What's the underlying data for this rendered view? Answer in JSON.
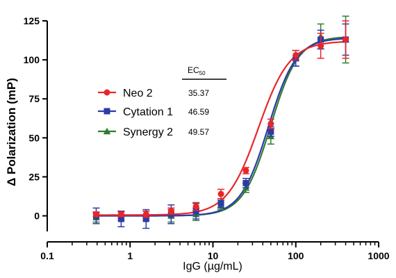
{
  "chart_data": {
    "type": "scatter",
    "title": "",
    "xlabel": "IgG (µg/mL)",
    "ylabel": "Δ Polarization (mP)",
    "x_scale": "log",
    "xlim": [
      0.1,
      1000
    ],
    "ylim": [
      -10,
      125
    ],
    "x_ticks": [
      {
        "value": 0.1,
        "label": "0.1"
      },
      {
        "value": 1,
        "label": "1"
      },
      {
        "value": 10,
        "label": "10"
      },
      {
        "value": 100,
        "label": "100"
      },
      {
        "value": 1000,
        "label": "1000"
      }
    ],
    "y_ticks": [
      {
        "value": 0,
        "label": "0"
      },
      {
        "value": 25,
        "label": "25"
      },
      {
        "value": 50,
        "label": "50"
      },
      {
        "value": 75,
        "label": "75"
      },
      {
        "value": 100,
        "label": "100"
      },
      {
        "value": 125,
        "label": "125"
      }
    ],
    "ec50_header_main": "EC",
    "ec50_header_sub": "50",
    "legend_position": "center-left",
    "grid": false,
    "x": [
      0.39,
      0.78,
      1.56,
      3.13,
      6.25,
      12.5,
      25,
      50,
      100,
      200,
      400
    ],
    "series": [
      {
        "name": "Neo 2",
        "ec50": "35.37",
        "color": "#e8262a",
        "marker": "circle",
        "fit": {
          "bottom": 0.5,
          "top": 112,
          "ec50": 35.37,
          "hill": 2.3
        },
        "values": [
          1,
          1,
          1,
          3,
          6,
          14,
          29,
          59,
          103,
          109,
          113
        ],
        "errors": [
          1.5,
          1.5,
          2,
          2,
          2.5,
          3,
          2,
          3,
          3,
          8,
          12
        ]
      },
      {
        "name": "Cytation 1",
        "ec50": "46.59",
        "color": "#2e3aa8",
        "marker": "square",
        "fit": {
          "bottom": 0,
          "top": 114,
          "ec50": 46.59,
          "hill": 2.6
        },
        "values": [
          0,
          -2,
          -2,
          1,
          3,
          8,
          21,
          54,
          101,
          113,
          113
        ],
        "errors": [
          5,
          5,
          6,
          6,
          5,
          3,
          3,
          3,
          5,
          6,
          10
        ]
      },
      {
        "name": "Synergy 2",
        "ec50": "49.57",
        "color": "#2e7d32",
        "marker": "triangle",
        "fit": {
          "bottom": 0,
          "top": 115,
          "ec50": 49.57,
          "hill": 2.6
        },
        "values": [
          -1,
          0,
          0,
          0,
          1,
          7,
          18,
          51,
          101,
          115,
          113
        ],
        "errors": [
          3,
          3,
          3,
          4,
          4,
          3,
          3,
          5,
          5,
          8,
          15
        ]
      }
    ]
  }
}
